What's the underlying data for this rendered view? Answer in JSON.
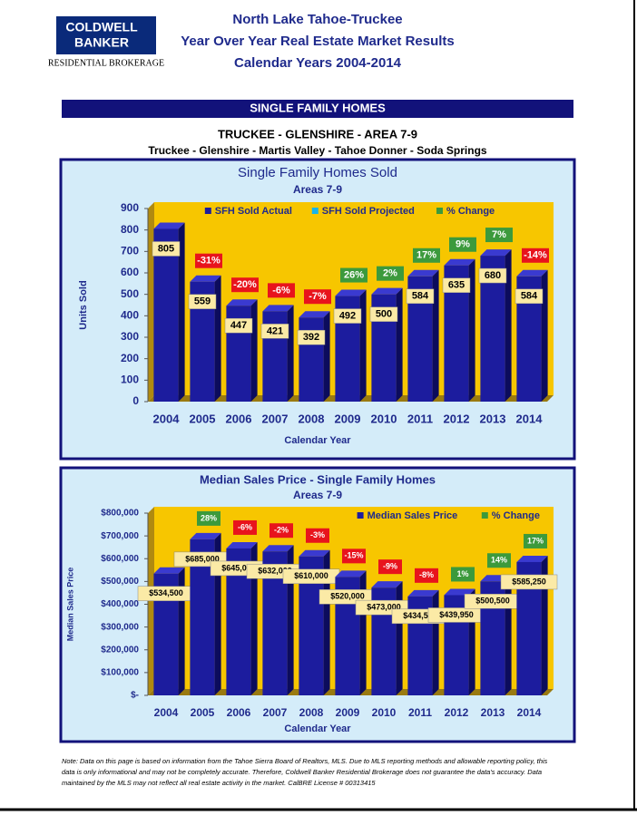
{
  "header": {
    "logo_line1": "COLDWELL",
    "logo_line2": "BANKER",
    "logo_sub": "RESIDENTIAL BROKERAGE",
    "title_lines": [
      "North Lake Tahoe-Truckee",
      "Year Over Year Real Estate Market Results",
      "Calendar Years 2004-2014"
    ],
    "band": "SINGLE FAMILY HOMES",
    "area": "TRUCKEE - GLENSHIRE - AREA 7-9",
    "area_sub": "Truckee - Glenshire - Martis Valley - Tahoe Donner - Soda Springs"
  },
  "chart_data": [
    {
      "type": "bar",
      "title": "Single Family Homes Sold",
      "subtitle": "Areas 7-9",
      "y_label": "Units Sold",
      "x_label": "Calendar Year",
      "legend": "top",
      "categories": [
        "2004",
        "2005",
        "2006",
        "2007",
        "2008",
        "2009",
        "2010",
        "2011",
        "2012",
        "2013",
        "2014"
      ],
      "series": [
        {
          "name": "SFH Sold Actual",
          "color": "#1c1c9e",
          "values": [
            805,
            559,
            447,
            421,
            392,
            492,
            500,
            584,
            635,
            680,
            584
          ]
        },
        {
          "name": "SFH Sold Projected",
          "color": "#19b4e8",
          "values": [
            null,
            null,
            null,
            null,
            null,
            null,
            null,
            null,
            null,
            null,
            null
          ]
        },
        {
          "name": "% Change",
          "color": "#3c9a3c",
          "negative_color": "#e8141c",
          "values": [
            null,
            -31,
            -20,
            -6,
            -7,
            26,
            2,
            17,
            9,
            7,
            -14
          ],
          "value_labels": [
            null,
            "-31%",
            "-20%",
            "-6%",
            "-7%",
            "26%",
            "2%",
            "17%",
            "9%",
            "7%",
            "-14%"
          ]
        }
      ],
      "ylim": [
        0,
        900
      ],
      "yticks": [
        0,
        100,
        200,
        300,
        400,
        500,
        600,
        700,
        800,
        900
      ]
    },
    {
      "type": "bar",
      "title": "Median Sales Price - Single Family Homes",
      "subtitle": "Areas 7-9",
      "y_label": "Median Sales Price",
      "x_label": "Calendar Year",
      "legend": "top right",
      "categories": [
        "2004",
        "2005",
        "2006",
        "2007",
        "2008",
        "2009",
        "2010",
        "2011",
        "2012",
        "2013",
        "2014"
      ],
      "series": [
        {
          "name": "Median Sales Price",
          "color": "#1c1c9e",
          "values": [
            534500,
            685000,
            645000,
            632000,
            610000,
            520000,
            473000,
            434500,
            439950,
            500500,
            585250
          ],
          "value_labels": [
            "$534,500",
            "$685,000",
            "$645,000",
            "$632,000",
            "$610,000",
            "$520,000",
            "$473,000",
            "$434,500",
            "$439,950",
            "$500,500",
            "$585,250"
          ]
        },
        {
          "name": "% Change",
          "color": "#3c9a3c",
          "negative_color": "#e8141c",
          "values": [
            null,
            28,
            -6,
            -2,
            -3,
            -15,
            -9,
            -8,
            1,
            14,
            17
          ],
          "value_labels": [
            null,
            "28%",
            "-6%",
            "-2%",
            "-3%",
            "-15%",
            "-9%",
            "-8%",
            "1%",
            "14%",
            "17%"
          ]
        }
      ],
      "ylim": [
        0,
        800000
      ],
      "yticks": [
        {
          "value": 0,
          "label": "$-"
        },
        {
          "value": 100000,
          "label": "$100,000"
        },
        {
          "value": 200000,
          "label": "$200,000"
        },
        {
          "value": 300000,
          "label": "$300,000"
        },
        {
          "value": 400000,
          "label": "$400,000"
        },
        {
          "value": 500000,
          "label": "$500,000"
        },
        {
          "value": 600000,
          "label": "$600,000"
        },
        {
          "value": 700000,
          "label": "$700,000"
        },
        {
          "value": 800000,
          "label": "$800,000"
        }
      ]
    }
  ],
  "footnote": [
    "Note: Data on this page is based on information from the Tahoe Sierra Board of Realtors, MLS.  Due to MLS reporting methods and allowable reporting policy, this",
    "data is only informational and may not be completely accurate.  Therefore, Coldwell Banker Residential Brokerage does not guarantee the data's accuracy.  Data",
    "maintained by the MLS may not reflect all real estate activity in the market.  CalBRE License # 00313415"
  ]
}
